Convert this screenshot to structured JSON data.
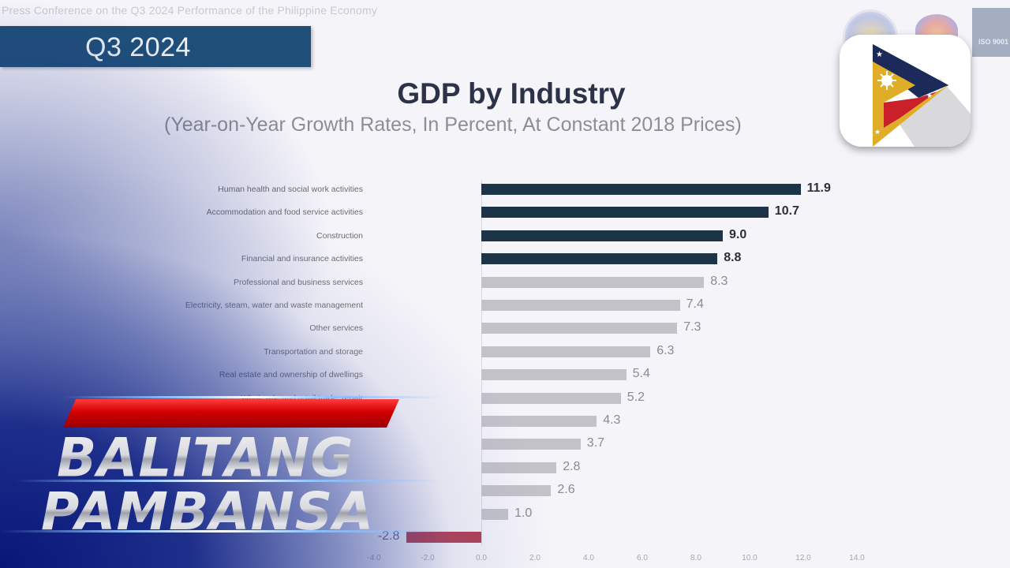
{
  "slide": {
    "press_header": "Press Conference on the Q3 2024 Performance of the Philippine Economy",
    "quarter_badge": "Q3 2024",
    "iso_badge": "ISO 9001"
  },
  "colors": {
    "highlight_bar": "#1b3448",
    "regular_bar": "#c3c2c9",
    "negative_bar": "#b03a4e",
    "quarter_badge_bg": "#1f4f78",
    "overlay_blue": "#0c1e82",
    "brand_red": "#d10000"
  },
  "broadcast": {
    "logo_line1": "BALITANG",
    "logo_line2": "PAMBANSA",
    "app_icon": "pbs-play-flag-icon"
  },
  "chart_data": {
    "type": "bar",
    "orientation": "horizontal",
    "title": "GDP by Industry",
    "subtitle": "(Year-on-Year Growth Rates, In Percent, At Constant 2018 Prices)",
    "xlabel": "",
    "ylabel": "",
    "xlim": [
      -4.0,
      14.0
    ],
    "x_ticks": [
      "-4.0",
      "-2.0",
      "0.0",
      "2.0",
      "4.0",
      "6.0",
      "8.0",
      "10.0",
      "12.0",
      "14.0"
    ],
    "grid": false,
    "legend": null,
    "categories": [
      "Human health and social work activities",
      "Accommodation and food service activities",
      "Construction",
      "Financial and insurance activities",
      "Professional and business services",
      "Electricity, steam, water and waste management",
      "Other services",
      "Transportation and storage",
      "Real estate and ownership of dwellings",
      "Wholesale and retail trade; repair",
      "",
      "",
      "",
      "",
      "",
      ""
    ],
    "values": [
      11.9,
      10.7,
      9.0,
      8.8,
      8.3,
      7.4,
      7.3,
      6.3,
      5.4,
      5.2,
      4.3,
      3.7,
      2.8,
      2.6,
      1.0,
      -2.8
    ],
    "value_labels": [
      "11.9",
      "10.7",
      "9.0",
      "8.8",
      "8.3",
      "7.4",
      "7.3",
      "6.3",
      "5.4",
      "5.2",
      "4.3",
      "3.7",
      "2.8",
      "2.6",
      "1.0",
      "-2.8"
    ],
    "highlighted": [
      true,
      true,
      true,
      true,
      false,
      false,
      false,
      false,
      false,
      false,
      false,
      false,
      false,
      false,
      false,
      false
    ]
  }
}
